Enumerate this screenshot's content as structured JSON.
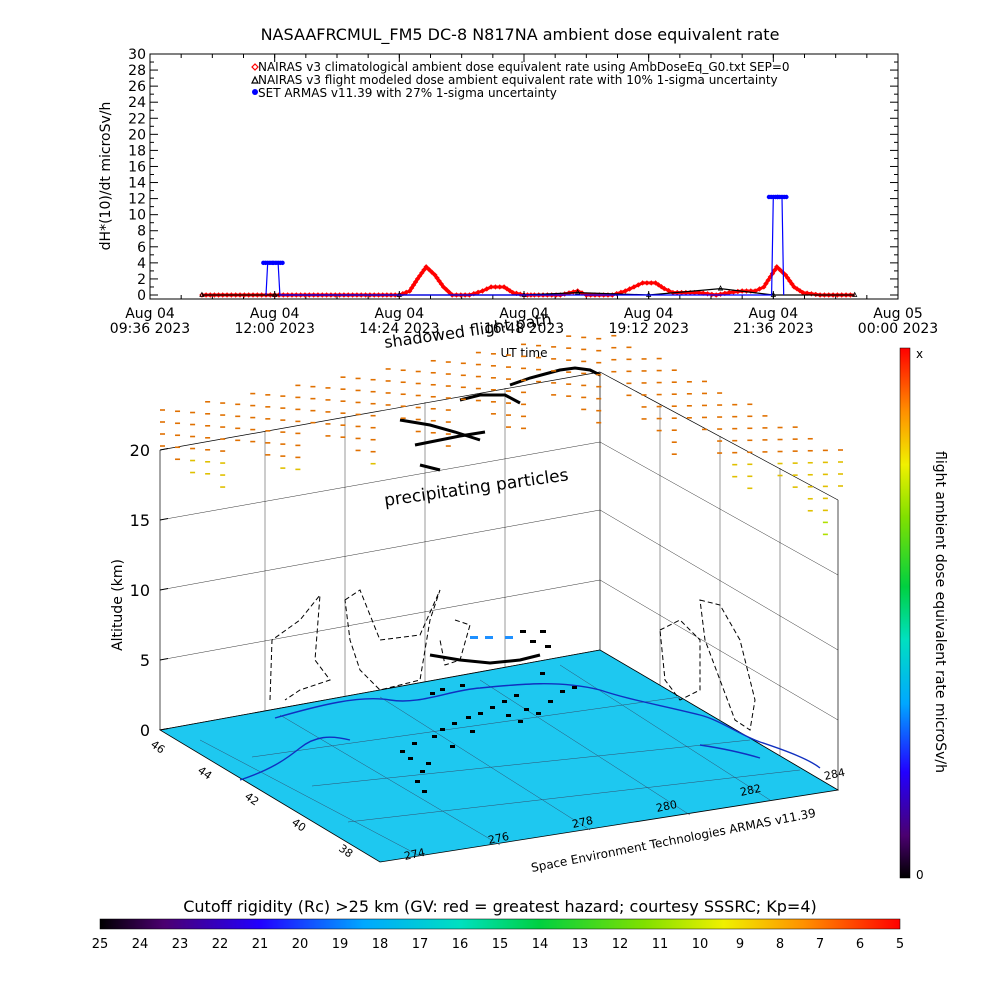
{
  "title": "NASAAFRCMUL_FM5 DC-8   N817NA ambient dose equivalent rate",
  "chart_data": [
    {
      "type": "line",
      "title": "NASAAFRCMUL_FM5 DC-8   N817NA ambient dose equivalent rate",
      "xlabel": "UT time",
      "ylabel": "dH*(10)/dt microSv/h",
      "xlim": [
        "2023-08-04T09:36",
        "2023-08-05T00:00"
      ],
      "ylim": [
        0,
        30
      ],
      "x_tick_labels": [
        [
          "Aug 04",
          "09:36 2023"
        ],
        [
          "Aug 04",
          "12:00 2023"
        ],
        [
          "Aug 04",
          "14:24 2023"
        ],
        [
          "Aug 04",
          "16:48 2023"
        ],
        [
          "Aug 04",
          "19:12 2023"
        ],
        [
          "Aug 04",
          "21:36 2023"
        ],
        [
          "Aug 05",
          "00:00 2023"
        ]
      ],
      "x_tick_times": [
        "09:36",
        "12:00",
        "14:24",
        "16:48",
        "19:12",
        "21:36",
        "24:00"
      ],
      "y_ticks": [
        0,
        2,
        4,
        6,
        8,
        10,
        12,
        14,
        16,
        18,
        20,
        22,
        24,
        26,
        28,
        30
      ],
      "legend_position": "top",
      "series": [
        {
          "name": "NAIRAS v3 climatological ambient dose equivalent rate using AmbDoseEq_G0.txt SEP=0",
          "marker": "diamond",
          "color": "#ff0000",
          "points": [
            [
              "10:36",
              0
            ],
            [
              "11:00",
              0
            ],
            [
              "11:30",
              0
            ],
            [
              "12:00",
              0
            ],
            [
              "12:30",
              0
            ],
            [
              "13:00",
              0
            ],
            [
              "13:30",
              0
            ],
            [
              "14:00",
              0
            ],
            [
              "14:24",
              0
            ],
            [
              "14:36",
              0.5
            ],
            [
              "14:45",
              2.0
            ],
            [
              "14:55",
              3.5
            ],
            [
              "15:05",
              2.5
            ],
            [
              "15:15",
              1.0
            ],
            [
              "15:25",
              0
            ],
            [
              "15:45",
              0
            ],
            [
              "16:00",
              0.5
            ],
            [
              "16:10",
              1.0
            ],
            [
              "16:25",
              1.0
            ],
            [
              "16:35",
              0.3
            ],
            [
              "16:48",
              0
            ],
            [
              "17:00",
              0
            ],
            [
              "17:30",
              0
            ],
            [
              "17:50",
              0.5
            ],
            [
              "18:00",
              0
            ],
            [
              "18:30",
              0
            ],
            [
              "18:45",
              0.5
            ],
            [
              "18:55",
              1.0
            ],
            [
              "19:05",
              1.5
            ],
            [
              "19:20",
              1.5
            ],
            [
              "19:30",
              0.8
            ],
            [
              "19:40",
              0.3
            ],
            [
              "19:55",
              0.3
            ],
            [
              "20:10",
              0.3
            ],
            [
              "20:30",
              0
            ],
            [
              "20:45",
              0.3
            ],
            [
              "21:00",
              0.5
            ],
            [
              "21:15",
              0.5
            ],
            [
              "21:25",
              1.0
            ],
            [
              "21:40",
              3.5
            ],
            [
              "21:50",
              2.5
            ],
            [
              "22:00",
              1.0
            ],
            [
              "22:10",
              0.3
            ],
            [
              "22:30",
              0
            ],
            [
              "23:00",
              0
            ],
            [
              "23:10",
              0
            ]
          ]
        },
        {
          "name": "NAIRAS v3 flight modeled dose ambient equivalent rate with 10% 1-sigma uncertainty",
          "marker": "triangle",
          "color": "#000000",
          "points": [
            [
              "10:36",
              0
            ],
            [
              "12:00",
              0
            ],
            [
              "14:24",
              0
            ],
            [
              "16:48",
              0
            ],
            [
              "17:50",
              0.3
            ],
            [
              "19:12",
              0
            ],
            [
              "20:35",
              0.8
            ],
            [
              "21:36",
              0
            ],
            [
              "23:10",
              0
            ]
          ]
        },
        {
          "name": "SET ARMAS v11.39 with 27% 1-sigma uncertainty",
          "marker": "circle",
          "color": "#0000ff",
          "points": [
            [
              "11:50",
              0
            ],
            [
              "11:52",
              4.0
            ],
            [
              "12:04",
              4.0
            ],
            [
              "12:06",
              0
            ],
            [
              "21:34",
              0
            ],
            [
              "21:36",
              12.2
            ],
            [
              "21:46",
              12.2
            ],
            [
              "21:48",
              0
            ]
          ]
        }
      ]
    },
    {
      "type": "3d-trajectory",
      "ylabel": "Altitude (km)",
      "z_ticks": [
        0,
        5,
        10,
        15,
        20
      ],
      "longitude_ticks": [
        274,
        276,
        278,
        280,
        282,
        284
      ],
      "latitude_ticks": [
        38,
        40,
        42,
        44,
        46
      ],
      "annotations": [
        "precipitating particles",
        "shadowed flight path"
      ],
      "credit": "Space Environment Technologies ARMAS v11.39",
      "colorbar": {
        "label": "flight ambient dose equivalent rate microSv/h",
        "top_label": "x",
        "bottom_label": "0"
      }
    },
    {
      "type": "colorbar",
      "title": "Cutoff rigidity (Rc) >25 km (GV: red = greatest hazard; courtesy SSSRC; Kp=4)",
      "tick_labels": [
        25,
        24,
        23,
        22,
        21,
        20,
        19,
        18,
        17,
        16,
        15,
        14,
        13,
        12,
        11,
        10,
        9,
        8,
        7,
        6,
        5
      ]
    }
  ]
}
